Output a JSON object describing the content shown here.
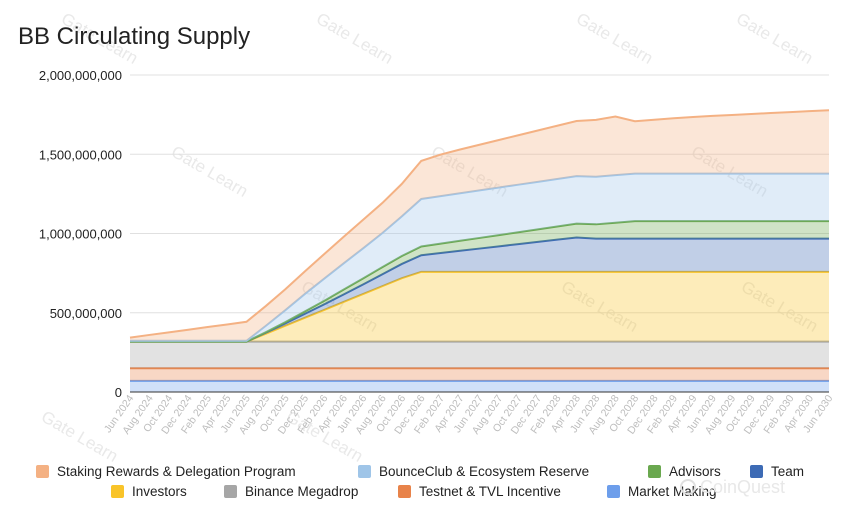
{
  "chart_data": {
    "type": "area",
    "stacked": true,
    "title": "BB Circulating Supply",
    "xlabel": "",
    "ylabel": "",
    "ylim": [
      0,
      2000000000
    ],
    "y_ticks": [
      0,
      500000000,
      1000000000,
      1500000000,
      2000000000
    ],
    "y_tick_labels": [
      "0",
      "500,000,000",
      "1,000,000,000",
      "1,500,000,000",
      "2,000,000,000"
    ],
    "grid": true,
    "legend_position": "bottom",
    "x": [
      "Jun 2024",
      "Aug 2024",
      "Oct 2024",
      "Dec 2024",
      "Feb 2025",
      "Apr 2025",
      "Jun 2025",
      "Aug 2025",
      "Oct 2025",
      "Dec 2025",
      "Feb 2026",
      "Apr 2026",
      "Jun 2026",
      "Aug 2026",
      "Oct 2026",
      "Dec 2026",
      "Feb 2027",
      "Apr 2027",
      "Jun 2027",
      "Aug 2027",
      "Oct 2027",
      "Dec 2027",
      "Feb 2028",
      "Apr 2028",
      "Jun 2028",
      "Aug 2028",
      "Oct 2028",
      "Dec 2028",
      "Feb 2029",
      "Apr 2029",
      "Jun 2029",
      "Aug 2029",
      "Oct 2029",
      "Dec 2029",
      "Feb 2030",
      "Apr 2030",
      "Jun 2030"
    ],
    "series": [
      {
        "name": "Market Making",
        "color": "#6d9eeb",
        "values": [
          70000000,
          70000000,
          70000000,
          70000000,
          70000000,
          70000000,
          70000000,
          70000000,
          70000000,
          70000000,
          70000000,
          70000000,
          70000000,
          70000000,
          70000000,
          70000000,
          70000000,
          70000000,
          70000000,
          70000000,
          70000000,
          70000000,
          70000000,
          70000000,
          70000000,
          70000000,
          70000000,
          70000000,
          70000000,
          70000000,
          70000000,
          70000000,
          70000000,
          70000000,
          70000000,
          70000000,
          70000000
        ]
      },
      {
        "name": "Testnet & TVL Incentive",
        "color": "#e8834a",
        "values": [
          80000000,
          80000000,
          80000000,
          80000000,
          80000000,
          80000000,
          80000000,
          80000000,
          80000000,
          80000000,
          80000000,
          80000000,
          80000000,
          80000000,
          80000000,
          80000000,
          80000000,
          80000000,
          80000000,
          80000000,
          80000000,
          80000000,
          80000000,
          80000000,
          80000000,
          80000000,
          80000000,
          80000000,
          80000000,
          80000000,
          80000000,
          80000000,
          80000000,
          80000000,
          80000000,
          80000000,
          80000000
        ]
      },
      {
        "name": "Binance Megadrop",
        "color": "#a6a6a6",
        "values": [
          168000000,
          168000000,
          168000000,
          168000000,
          168000000,
          168000000,
          168000000,
          168000000,
          168000000,
          168000000,
          168000000,
          168000000,
          168000000,
          168000000,
          168000000,
          168000000,
          168000000,
          168000000,
          168000000,
          168000000,
          168000000,
          168000000,
          168000000,
          168000000,
          168000000,
          168000000,
          168000000,
          168000000,
          168000000,
          168000000,
          168000000,
          168000000,
          168000000,
          168000000,
          168000000,
          168000000,
          168000000
        ]
      },
      {
        "name": "Investors",
        "color": "#f9c429",
        "values": [
          0,
          0,
          0,
          0,
          0,
          0,
          0,
          50000000,
          100000000,
          150000000,
          200000000,
          250000000,
          300000000,
          350000000,
          400000000,
          440000000,
          440000000,
          440000000,
          440000000,
          440000000,
          440000000,
          440000000,
          440000000,
          440000000,
          440000000,
          440000000,
          440000000,
          440000000,
          440000000,
          440000000,
          440000000,
          440000000,
          440000000,
          440000000,
          440000000,
          440000000,
          440000000
        ]
      },
      {
        "name": "Team",
        "color": "#3d6bb5",
        "values": [
          0,
          0,
          0,
          0,
          0,
          0,
          0,
          7000000,
          15000000,
          25000000,
          35000000,
          47000000,
          60000000,
          75000000,
          90000000,
          105000000,
          119000000,
          133000000,
          147000000,
          161000000,
          175000000,
          189000000,
          203000000,
          217000000,
          210000000,
          210000000,
          210000000,
          210000000,
          210000000,
          210000000,
          210000000,
          210000000,
          210000000,
          210000000,
          210000000,
          210000000,
          210000000
        ]
      },
      {
        "name": "Advisors",
        "color": "#6aa84f",
        "values": [
          0,
          0,
          0,
          0,
          0,
          0,
          0,
          3000000,
          8000000,
          15000000,
          22000000,
          31000000,
          38000000,
          45000000,
          50000000,
          55000000,
          59000000,
          63000000,
          67000000,
          71000000,
          75000000,
          79000000,
          83000000,
          87000000,
          90000000,
          100000000,
          110000000,
          110000000,
          110000000,
          110000000,
          110000000,
          110000000,
          110000000,
          110000000,
          110000000,
          110000000,
          110000000
        ]
      },
      {
        "name": "BounceClub & Ecosystem Reserve",
        "color": "#9fc5e8",
        "values": [
          5000000,
          5000000,
          5000000,
          5000000,
          5000000,
          5000000,
          5000000,
          40000000,
          75000000,
          110000000,
          140000000,
          165000000,
          190000000,
          215000000,
          250000000,
          300000000,
          300000000,
          300000000,
          300000000,
          300000000,
          300000000,
          300000000,
          300000000,
          300000000,
          300000000,
          300000000,
          300000000,
          300000000,
          300000000,
          300000000,
          300000000,
          300000000,
          300000000,
          300000000,
          300000000,
          300000000,
          300000000
        ]
      },
      {
        "name": "Staking Rewards & Delegation Program",
        "color": "#f4b183",
        "values": [
          20000000,
          37000000,
          53000000,
          70000000,
          87000000,
          103000000,
          120000000,
          125000000,
          132000000,
          142000000,
          155000000,
          168000000,
          180000000,
          190000000,
          205000000,
          240000000,
          262000000,
          276000000,
          288000000,
          300000000,
          312000000,
          324000000,
          336000000,
          348000000,
          359000000,
          370000000,
          330000000,
          340000000,
          349000000,
          357000000,
          364000000,
          370000000,
          376000000,
          382000000,
          388000000,
          394000000,
          400000000
        ]
      }
    ]
  },
  "legend": {
    "row1": [
      "Staking Rewards & Delegation Program",
      "BounceClub & Ecosystem Reserve",
      "Advisors",
      "Team"
    ],
    "row2": [
      "Investors",
      "Binance Megadrop",
      "Testnet & TVL Incentive",
      "Market Making"
    ]
  },
  "watermark": {
    "text": "Gate Learn",
    "overlay": "CoinQuest"
  }
}
